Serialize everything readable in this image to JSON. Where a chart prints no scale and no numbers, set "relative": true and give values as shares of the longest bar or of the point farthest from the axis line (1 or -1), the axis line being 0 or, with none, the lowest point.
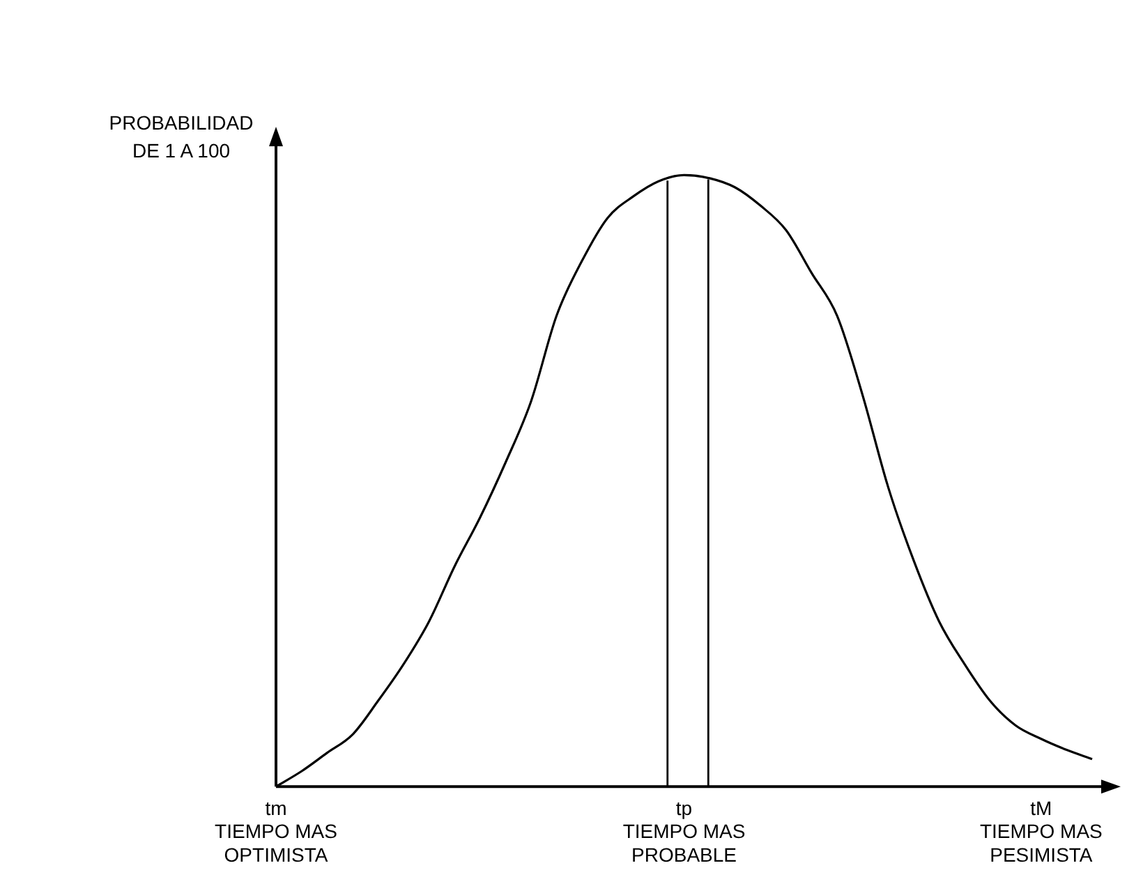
{
  "chart_data": {
    "type": "line",
    "relative": true,
    "ylabel": "PROBABILIDAD\nDE 1 A 100",
    "categories": [
      "tm\nTIEMPO MAS\nOPTIMISTA",
      null,
      null,
      null,
      null,
      null,
      null,
      null,
      null,
      null,
      null,
      null,
      null,
      null,
      null,
      null,
      "tp\nTIEMPO MAS\nPROBABLE",
      null,
      null,
      null,
      null,
      null,
      null,
      null,
      null,
      null,
      null,
      null,
      null,
      null,
      "tM\nTIEMPO MAS\nPESIMISTA",
      null,
      null
    ],
    "series": [
      {
        "color": "#000000",
        "values": [
          0,
          0.025,
          0.055,
          0.085,
          0.14,
          0.2,
          0.27,
          0.36,
          0.44,
          0.53,
          0.63,
          0.77,
          0.86,
          0.93,
          0.965,
          0.99,
          1,
          0.995,
          0.98,
          0.95,
          0.91,
          0.84,
          0.77,
          0.64,
          0.49,
          0.37,
          0.27,
          0.2,
          0.14,
          0.1,
          0.078,
          0.06,
          0.045
        ]
      }
    ],
    "marker": "none"
  }
}
